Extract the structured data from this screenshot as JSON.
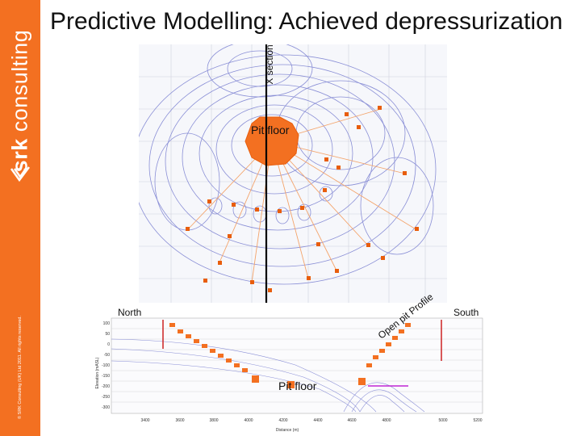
{
  "brand": {
    "bold": "srk",
    "rest": " consulting",
    "color": "#f37021"
  },
  "copyright": "© SRK Consulting (UK) Ltd 2011. All rights reserved.",
  "title": "Predictive Modelling: Achieved depressurization",
  "map": {
    "xsection_label": "X section",
    "pit_floor_label": "Pit floor"
  },
  "section": {
    "north_label": "North",
    "south_label": "South",
    "open_pit_label": "Open pit Profile",
    "pit_floor_label": "Pit floor",
    "y_axis_label": "Elevation (mASL)",
    "x_axis_label": "Distance (m)",
    "y_ticks": [
      "100",
      "50",
      "0",
      "-50",
      "-100",
      "-150",
      "-200",
      "-250",
      "-300"
    ],
    "x_ticks": [
      "3400",
      "3600",
      "3800",
      "4000",
      "4200",
      "4400",
      "4600",
      "4800",
      "5000",
      "5200"
    ]
  },
  "colors": {
    "accent": "#f37021",
    "contour": "#8a8fd6",
    "grid": "#c8c8c8",
    "marker": "#e85d0c"
  }
}
